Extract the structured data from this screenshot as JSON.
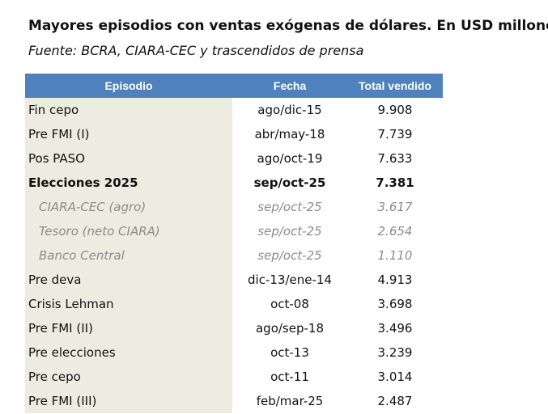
{
  "title": "Mayores episodios con ventas exógenas de dólares. En USD millones.",
  "subtitle": "Fuente: BCRA, CIARA-CEC y trascendidos de prensa",
  "headers": {
    "episodio": "Episodio",
    "fecha": "Fecha",
    "total": "Total vendido"
  },
  "rows": [
    {
      "episodio": "Fin cepo",
      "fecha": "ago/dic-15",
      "total": "9.908",
      "style": "normal"
    },
    {
      "episodio": "Pre FMI (I)",
      "fecha": "abr/may-18",
      "total": "7.739",
      "style": "normal"
    },
    {
      "episodio": "Pos PASO",
      "fecha": "ago/oct-19",
      "total": "7.633",
      "style": "normal"
    },
    {
      "episodio": "Elecciones 2025",
      "fecha": "sep/oct-25",
      "total": "7.381",
      "style": "bold"
    },
    {
      "episodio": "CIARA-CEC (agro)",
      "fecha": "sep/oct-25",
      "total": "3.617",
      "style": "sub"
    },
    {
      "episodio": "Tesoro (neto CIARA)",
      "fecha": "sep/oct-25",
      "total": "2.654",
      "style": "sub"
    },
    {
      "episodio": "Banco Central",
      "fecha": "sep/oct-25",
      "total": "1.110",
      "style": "sub"
    },
    {
      "episodio": "Pre deva",
      "fecha": "dic-13/ene-14",
      "total": "4.913",
      "style": "normal"
    },
    {
      "episodio": "Crisis Lehman",
      "fecha": "oct-08",
      "total": "3.698",
      "style": "normal"
    },
    {
      "episodio": "Pre FMI (II)",
      "fecha": "ago/sep-18",
      "total": "3.496",
      "style": "normal"
    },
    {
      "episodio": "Pre elecciones",
      "fecha": "oct-13",
      "total": "3.239",
      "style": "normal"
    },
    {
      "episodio": "Pre cepo",
      "fecha": "oct-11",
      "total": "3.014",
      "style": "normal"
    },
    {
      "episodio": "Pre FMI (III)",
      "fecha": "feb/mar-25",
      "total": "2.487",
      "style": "normal"
    }
  ],
  "colors": {
    "header_bg": "#4f81bd",
    "first_col_bg": "#eeece1",
    "sub_text": "#8c8c8c"
  }
}
